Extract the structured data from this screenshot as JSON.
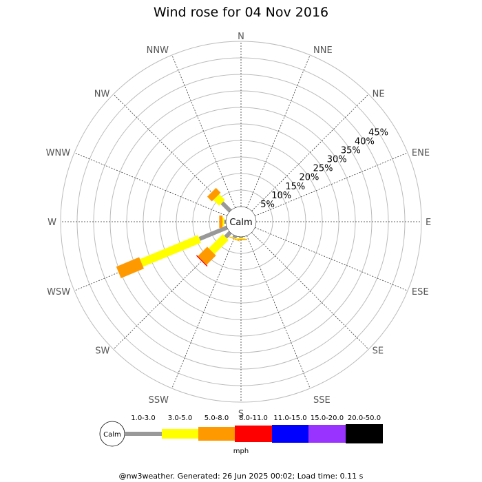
{
  "chart_data": {
    "type": "wind-rose",
    "title": "Wind rose for 04 Nov 2016",
    "directions": [
      "N",
      "NNE",
      "NE",
      "ENE",
      "E",
      "ESE",
      "SE",
      "SSE",
      "S",
      "SSW",
      "SW",
      "WSW",
      "W",
      "WNW",
      "NW",
      "NNW"
    ],
    "radial_ticks": [
      "5%",
      "10%",
      "15%",
      "20%",
      "25%",
      "30%",
      "35%",
      "40%",
      "45%"
    ],
    "radial_max": 50,
    "calm_label": "Calm",
    "speed_bins": [
      {
        "label": "1.0-3.0",
        "color": "#999999"
      },
      {
        "label": "3.0-5.0",
        "color": "#ffff00"
      },
      {
        "label": "5.0-8.0",
        "color": "#ff9900"
      },
      {
        "label": "8.0-11.0",
        "color": "#ff0000"
      },
      {
        "label": "11.0-15.0",
        "color": "#0000ff"
      },
      {
        "label": "15.0-20.0",
        "color": "#9933ff"
      },
      {
        "label": "20.0-50.0",
        "color": "#000000"
      }
    ],
    "series": [
      {
        "direction": "S",
        "values": [
          0.3,
          0.3,
          0.3,
          0,
          0,
          0,
          0
        ]
      },
      {
        "direction": "SSW",
        "values": [
          0.7,
          0.2,
          0.2,
          0,
          0,
          0,
          0
        ]
      },
      {
        "direction": "SW",
        "values": [
          2.0,
          6.0,
          4.0,
          0.3,
          0,
          0,
          0
        ]
      },
      {
        "direction": "WSW",
        "values": [
          9.0,
          19.0,
          7.5,
          0,
          0,
          0,
          0
        ]
      },
      {
        "direction": "W",
        "values": [
          0.5,
          0.5,
          1.0,
          0,
          0,
          0,
          0
        ]
      },
      {
        "direction": "NW",
        "values": [
          3.5,
          2.5,
          2.0,
          0,
          0,
          0,
          0
        ]
      }
    ],
    "legend_unit": "mph"
  },
  "footer": "@nw3weather. Generated: 26 Jun 2025 00:02; Load time: 0.11 s"
}
